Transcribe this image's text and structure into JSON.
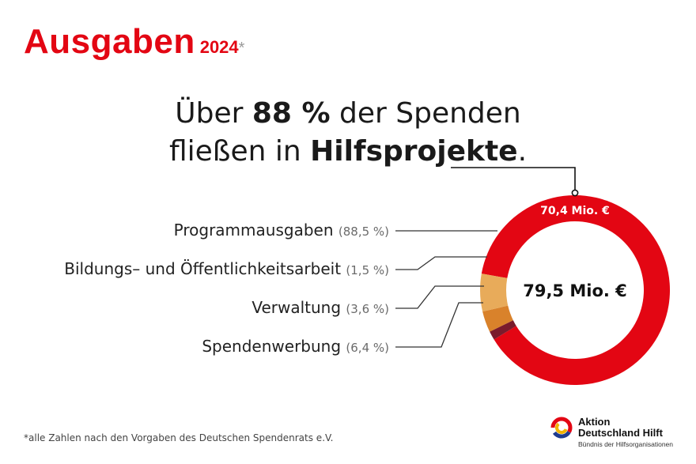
{
  "header": {
    "title": "Ausgaben",
    "year": "2024",
    "year_marker": "*"
  },
  "headline": {
    "line1_pre": "Über ",
    "line1_bold": "88 %",
    "line1_post": " der Spenden",
    "line2_pre": "fließen in ",
    "line2_bold": "Hilfsprojekte",
    "line2_post": "."
  },
  "chart_data": {
    "type": "pie",
    "variant": "donut",
    "total_label": "79,5 Mio. €",
    "highlight_label": "70,4 Mio. €",
    "slices": [
      {
        "name": "Programmausgaben",
        "pct_label": "(88,5 %)",
        "value": 88.5,
        "color": "#e30613"
      },
      {
        "name": "Bildungs- und Öffentlichkeitsarbeit",
        "pct_label": "(1,5 %)",
        "value": 1.5,
        "color": "#7a1b2c"
      },
      {
        "name": "Verwaltung",
        "pct_label": "(3,6 %)",
        "value": 3.6,
        "color": "#d9822b"
      },
      {
        "name": "Spendenwerbung",
        "pct_label": "(6,4 %)",
        "value": 6.4,
        "color": "#e8ab5a"
      }
    ],
    "legend_order": [
      "Programmausgaben",
      "Bildungs- und Öffentlichkeitsarbeit",
      "Verwaltung",
      "Spendenwerbung"
    ],
    "legend_pct_labels": [
      "(88,5 %)",
      "(1,5 %)",
      "(3,6 %)",
      "(6,4 %)"
    ],
    "legend_names": [
      "Programmausgaben",
      "Bildungs– und Öffentlichkeitsarbeit",
      "Verwaltung",
      "Spendenwerbung"
    ],
    "leader_color": "#333333"
  },
  "footnote": "*alle Zahlen nach den Vorgaben des Deutschen Spendenrats e.V.",
  "logo": {
    "line1": "Aktion",
    "line2": "Deutschland Hilft",
    "line3": "Bündnis der Hilfsorganisationen",
    "colors": [
      "#e30613",
      "#f2b300",
      "#1f3b8f"
    ]
  }
}
